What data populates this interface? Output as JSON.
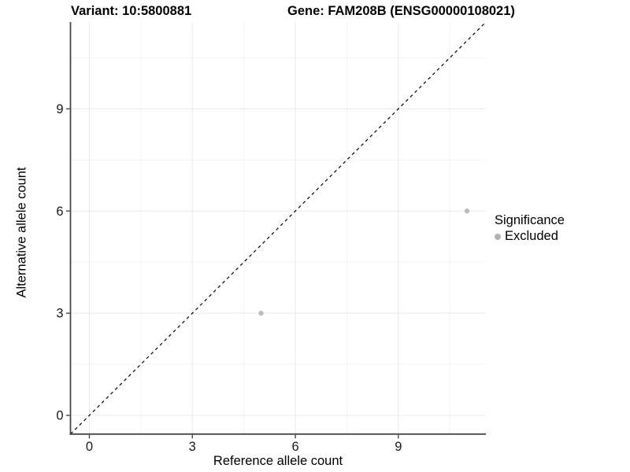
{
  "chart_data": {
    "type": "scatter",
    "title_left": "Variant: 10:5800881",
    "title_right": "Gene: FAM208B (ENSG00000108021)",
    "xlabel": "Reference allele count",
    "ylabel": "Alternative allele count",
    "xlim": [
      -0.55,
      11.55
    ],
    "ylim": [
      -0.55,
      11.55
    ],
    "x_ticks": [
      0,
      3,
      6,
      9
    ],
    "y_ticks": [
      0,
      3,
      6,
      9
    ],
    "x_minor_ticks": [
      1.5,
      4.5,
      7.5,
      10.5
    ],
    "y_minor_ticks": [
      1.5,
      4.5,
      7.5,
      10.5
    ],
    "grid": true,
    "identity_line": {
      "style": "dashed",
      "color": "#000000",
      "from": [
        -0.55,
        -0.55
      ],
      "to": [
        11.55,
        11.55
      ]
    },
    "series": [
      {
        "name": "Excluded",
        "color": "#BDBDBD",
        "points": [
          [
            5,
            3
          ],
          [
            11,
            6
          ]
        ]
      }
    ],
    "legend": {
      "position": "right",
      "title": "Significance",
      "items": [
        {
          "label": "Excluded",
          "color": "#B3B3B3"
        }
      ]
    },
    "colors": {
      "axis": "#474747",
      "tick_label": "#1a1a1a",
      "grid_major": "#E9E9E9",
      "grid_minor": "#F3F3F3",
      "background": "#FFFFFF"
    }
  }
}
